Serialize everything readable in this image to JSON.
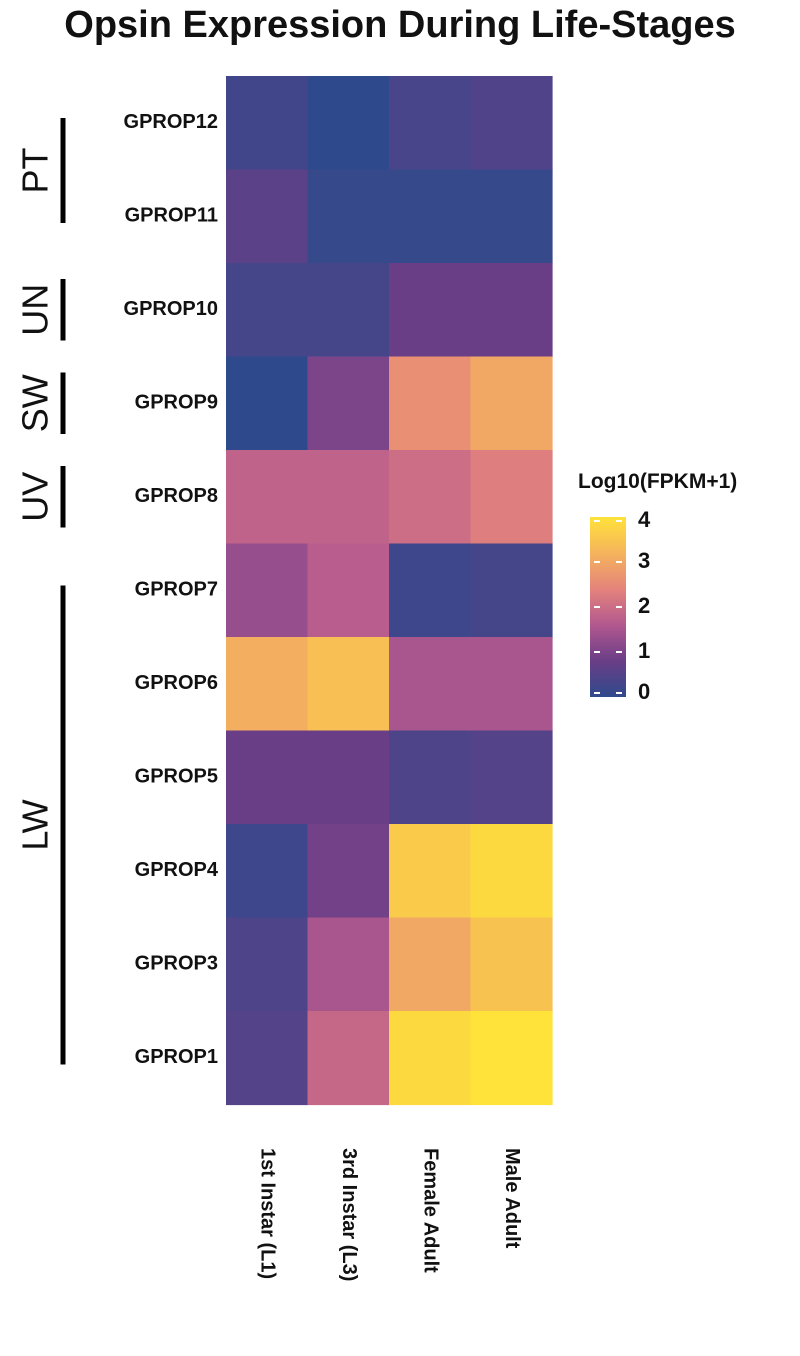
{
  "chart_data": {
    "type": "heatmap",
    "title": "Opsin Expression During Life-Stages",
    "rows": [
      "GPROP12",
      "GPROP11",
      "GPROP10",
      "GPROP9",
      "GPROP8",
      "GPROP7",
      "GPROP6",
      "GPROP5",
      "GPROP4",
      "GPROP3",
      "GPROP1"
    ],
    "columns": [
      "1st Instar (L1)",
      "3rd Instar (L3)",
      "Female Adult",
      "Male Adult"
    ],
    "values": [
      [
        0.25,
        0.0,
        0.35,
        0.45
      ],
      [
        0.6,
        0.1,
        0.1,
        0.1
      ],
      [
        0.3,
        0.3,
        0.8,
        0.8
      ],
      [
        0.0,
        1.0,
        2.6,
        3.0
      ],
      [
        1.8,
        1.8,
        2.0,
        2.3
      ],
      [
        1.3,
        1.7,
        0.2,
        0.3
      ],
      [
        3.1,
        3.4,
        1.5,
        1.5
      ],
      [
        0.8,
        0.8,
        0.4,
        0.5
      ],
      [
        0.2,
        0.9,
        3.6,
        3.85
      ],
      [
        0.4,
        1.5,
        3.0,
        3.45
      ],
      [
        0.5,
        1.9,
        3.85,
        4.1
      ]
    ],
    "groups": [
      {
        "label": "PT",
        "rows": [
          "GPROP12",
          "GPROP11"
        ]
      },
      {
        "label": "UN",
        "rows": [
          "GPROP10"
        ]
      },
      {
        "label": "SW",
        "rows": [
          "GPROP9"
        ]
      },
      {
        "label": "UV",
        "rows": [
          "GPROP8"
        ]
      },
      {
        "label": "LW",
        "rows": [
          "GPROP7",
          "GPROP6",
          "GPROP5",
          "GPROP4",
          "GPROP3",
          "GPROP1"
        ]
      }
    ],
    "colorbar": {
      "title": "Log10(FPKM+1)",
      "min": 0,
      "max": 4,
      "ticks": [
        0,
        1,
        2,
        3,
        4
      ],
      "colors": [
        "#2f4a8c",
        "#6a3e87",
        "#b2588f",
        "#e5837b",
        "#f5b45c",
        "#ffe23a"
      ]
    },
    "legend_position": "right"
  }
}
